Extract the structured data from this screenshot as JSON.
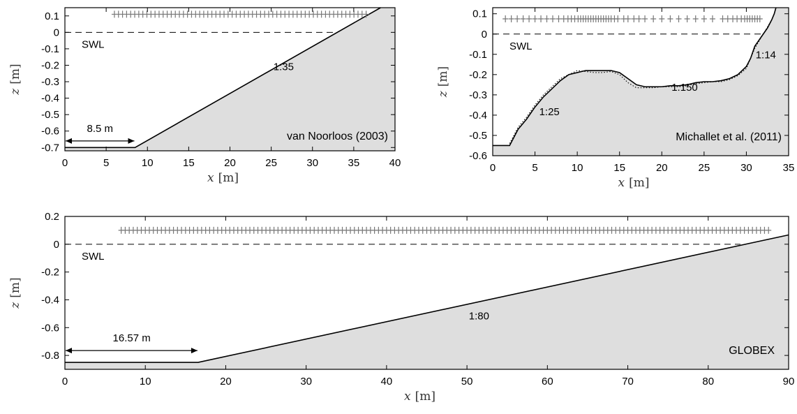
{
  "chart_data": [
    {
      "id": "vannoorloos",
      "type": "area",
      "title": "van Noorloos (2003)",
      "xlabel_var": "x",
      "xlabel_unit": "[m]",
      "ylabel_var": "z",
      "ylabel_unit": "[m]",
      "xlim": [
        0,
        40
      ],
      "ylim": [
        -0.72,
        0.15
      ],
      "xticks": [
        0,
        5,
        10,
        15,
        20,
        25,
        30,
        35,
        40
      ],
      "yticks": [
        0.1,
        0,
        -0.1,
        -0.2,
        -0.3,
        -0.4,
        -0.5,
        -0.6,
        -0.7
      ],
      "ytick_labels": [
        "0.1",
        "0",
        "-0.1",
        "-0.2",
        "-0.3",
        "-0.4",
        "-0.5",
        "-0.6",
        "-0.7"
      ],
      "bed": {
        "x": [
          0,
          8.5,
          38.25
        ],
        "z": [
          -0.7,
          -0.7,
          0.15
        ]
      },
      "swl": {
        "label": "SWL",
        "z": 0,
        "x_end": 32.5
      },
      "gauges": {
        "x_start": 6,
        "x_end": 36.5,
        "count": 63,
        "z": 0.11
      },
      "annotations": [
        {
          "text": "1:35",
          "x": 26.5,
          "z": -0.23
        },
        {
          "text": "8.5 m",
          "x": 4.25,
          "z": -0.605,
          "arrow_x": [
            0,
            8.5
          ],
          "arrow_z": -0.66
        }
      ],
      "grid": false
    },
    {
      "id": "michallet",
      "type": "area",
      "title": "Michallet et al. (2011)",
      "xlabel_var": "x",
      "xlabel_unit": "[m]",
      "ylabel_var": "z",
      "ylabel_unit": "[m]",
      "xlim": [
        0,
        35
      ],
      "ylim": [
        -0.6,
        0.13
      ],
      "xticks": [
        0,
        5,
        10,
        15,
        20,
        25,
        30,
        35
      ],
      "yticks": [
        0.1,
        0,
        -0.1,
        -0.2,
        -0.3,
        -0.4,
        -0.5,
        -0.6
      ],
      "ytick_labels": [
        "0.1",
        "0",
        "-0.1",
        "-0.2",
        "-0.3",
        "-0.4",
        "-0.5",
        "-0.6"
      ],
      "bed": {
        "x": [
          0,
          2,
          3,
          4,
          5,
          6,
          7,
          8,
          9,
          10,
          11,
          12,
          13,
          14,
          15,
          16,
          17,
          18,
          19,
          20,
          21,
          22,
          23,
          24,
          25,
          26,
          27,
          28,
          29,
          30,
          30.5,
          31,
          31.5,
          32,
          32.5,
          33,
          33.3,
          33.5
        ],
        "z": [
          -0.55,
          -0.55,
          -0.47,
          -0.42,
          -0.36,
          -0.31,
          -0.27,
          -0.23,
          -0.2,
          -0.19,
          -0.18,
          -0.18,
          -0.18,
          -0.18,
          -0.19,
          -0.22,
          -0.25,
          -0.26,
          -0.26,
          -0.26,
          -0.255,
          -0.255,
          -0.25,
          -0.24,
          -0.235,
          -0.235,
          -0.23,
          -0.22,
          -0.2,
          -0.16,
          -0.12,
          -0.06,
          -0.03,
          0.0,
          0.03,
          0.07,
          0.1,
          0.13
        ]
      },
      "bed_dotted": {
        "x": [
          2,
          3,
          4,
          5,
          6,
          7,
          8,
          9,
          10,
          11,
          12,
          13,
          14,
          15,
          16,
          17,
          18,
          19,
          20,
          21,
          22,
          23,
          24,
          25,
          26,
          27,
          28,
          29,
          30,
          31,
          32,
          33
        ],
        "z": [
          -0.54,
          -0.46,
          -0.41,
          -0.35,
          -0.3,
          -0.26,
          -0.22,
          -0.2,
          -0.18,
          -0.185,
          -0.19,
          -0.19,
          -0.185,
          -0.2,
          -0.24,
          -0.265,
          -0.265,
          -0.265,
          -0.26,
          -0.26,
          -0.26,
          -0.255,
          -0.245,
          -0.24,
          -0.235,
          -0.235,
          -0.225,
          -0.205,
          -0.17,
          -0.07,
          0.0,
          0.07
        ]
      },
      "swl": {
        "label": "SWL",
        "z": 0,
        "x_end": 32
      },
      "gauges": {
        "x": [
          1.5,
          2.2,
          2.9,
          3.6,
          4.3,
          5.0,
          5.7,
          6.4,
          7.1,
          7.8,
          8.4,
          8.9,
          9.3,
          9.7,
          10.1,
          10.4,
          10.7,
          11.0,
          11.3,
          11.6,
          11.9,
          12.2,
          12.5,
          12.8,
          13.1,
          13.4,
          13.7,
          14.0,
          14.4,
          14.8,
          15.5,
          16.0,
          16.7,
          17.3,
          18.0,
          19.0,
          20.0,
          21.0,
          22.0,
          23.0,
          24.0,
          25.0,
          26.0,
          27.2,
          27.8,
          28.4,
          28.9,
          29.4,
          29.8,
          30.1,
          30.4,
          30.7,
          31.0,
          31.3,
          31.6
        ],
        "z": 0.075
      },
      "annotations": [
        {
          "text": "1:25",
          "x": 6.7,
          "z": -0.4
        },
        {
          "text": "1:150",
          "x": 22.7,
          "z": -0.28
        },
        {
          "text": "1:14",
          "x": 32.3,
          "z": -0.12
        }
      ],
      "grid": false
    },
    {
      "id": "globex",
      "type": "area",
      "title": "GLOBEX",
      "xlabel_var": "x",
      "xlabel_unit": "[m]",
      "ylabel_var": "z",
      "ylabel_unit": "[m]",
      "xlim": [
        0,
        90
      ],
      "ylim": [
        -0.9,
        0.2
      ],
      "xticks": [
        0,
        10,
        20,
        30,
        40,
        50,
        60,
        70,
        80,
        90
      ],
      "yticks": [
        0.2,
        0,
        -0.2,
        -0.4,
        -0.6,
        -0.8
      ],
      "ytick_labels": [
        "0.2",
        "0",
        "-0.2",
        "-0.4",
        "-0.6",
        "-0.8"
      ],
      "bed": {
        "x": [
          0,
          16.57,
          90
        ],
        "z": [
          -0.85,
          -0.85,
          0.067
        ]
      },
      "swl": {
        "label": "SWL",
        "z": 0,
        "x_end": 84
      },
      "gauges": {
        "x_start": 7,
        "x_end": 87.5,
        "count": 162,
        "z": 0.1
      },
      "annotations": [
        {
          "text": "1:80",
          "x": 51.5,
          "z": -0.54
        },
        {
          "text": "16.57 m",
          "x": 8.3,
          "z": -0.7,
          "arrow_x": [
            0,
            16.57
          ],
          "arrow_z": -0.765
        }
      ],
      "grid": false
    }
  ]
}
